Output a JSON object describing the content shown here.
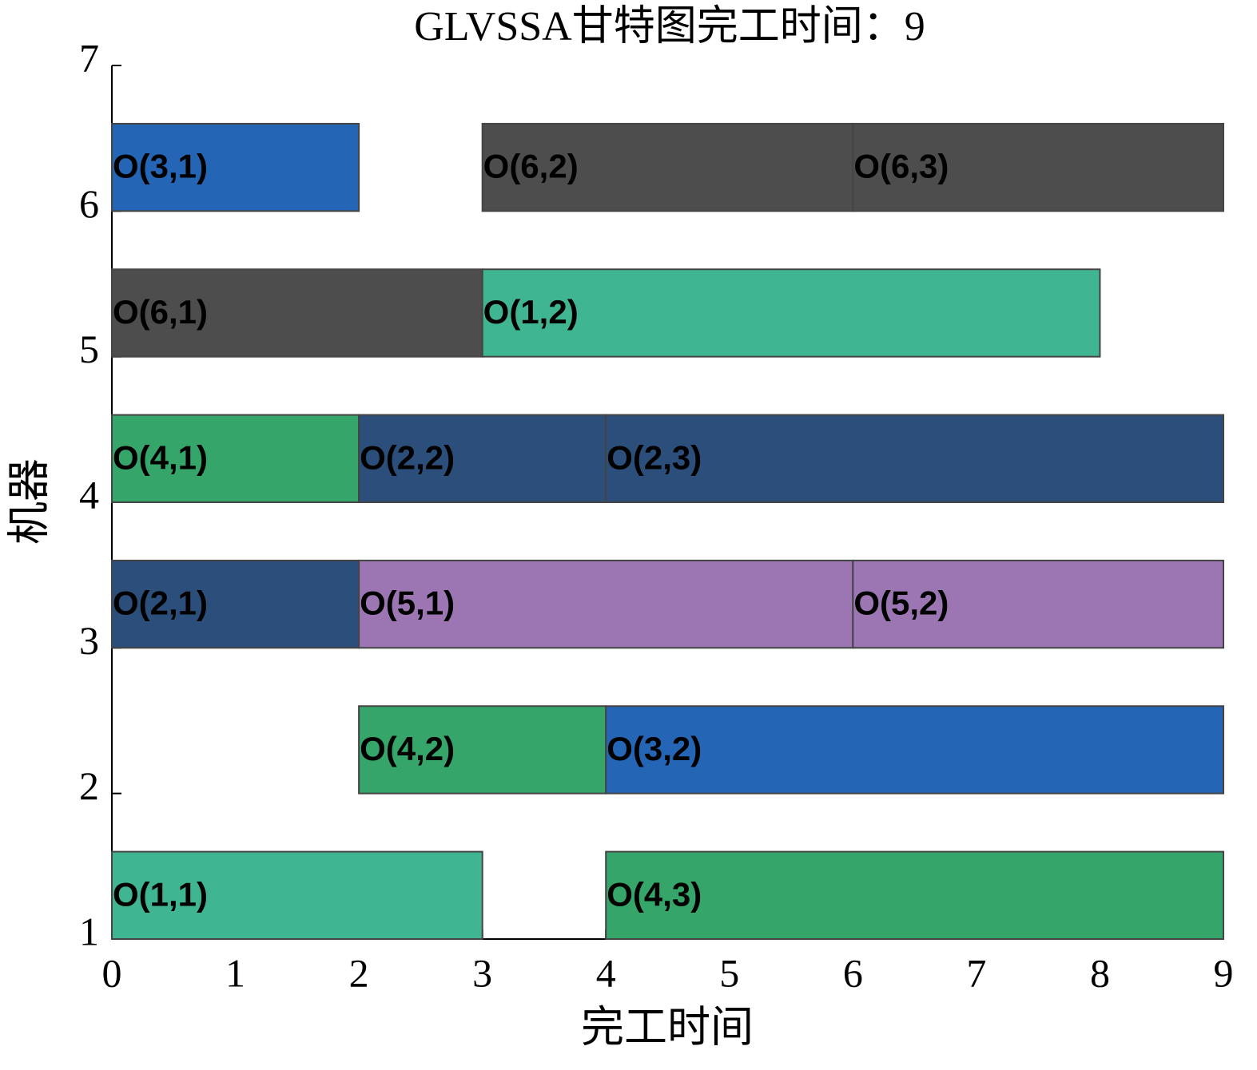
{
  "chart_data": {
    "type": "gantt",
    "title": "GLVSSA甘特图完工时间：9",
    "x_label": "完工时间",
    "y_label": "机器",
    "xlim": [
      0,
      9
    ],
    "xticks": [
      0,
      1,
      2,
      3,
      4,
      5,
      6,
      7,
      8,
      9
    ],
    "ylim": [
      1,
      7
    ],
    "yticks": [
      1,
      2,
      3,
      4,
      5,
      6,
      7
    ],
    "tasks": [
      {
        "name": "O(1,1)",
        "machine": 1,
        "start": 0,
        "end": 3,
        "color": "#40b592"
      },
      {
        "name": "O(4,3)",
        "machine": 1,
        "start": 4,
        "end": 9,
        "color": "#35a56a"
      },
      {
        "name": "O(4,2)",
        "machine": 2,
        "start": 2,
        "end": 4,
        "color": "#35a56a"
      },
      {
        "name": "O(3,2)",
        "machine": 2,
        "start": 4,
        "end": 9,
        "color": "#2466b5"
      },
      {
        "name": "O(2,1)",
        "machine": 3,
        "start": 0,
        "end": 2,
        "color": "#2b4f7a"
      },
      {
        "name": "O(5,1)",
        "machine": 3,
        "start": 2,
        "end": 6,
        "color": "#9b76b2"
      },
      {
        "name": "O(5,2)",
        "machine": 3,
        "start": 6,
        "end": 9,
        "color": "#9b76b2"
      },
      {
        "name": "O(4,1)",
        "machine": 4,
        "start": 0,
        "end": 2,
        "color": "#35a56a"
      },
      {
        "name": "O(2,2)",
        "machine": 4,
        "start": 2,
        "end": 4,
        "color": "#2b4f7a"
      },
      {
        "name": "O(2,3)",
        "machine": 4,
        "start": 4,
        "end": 9,
        "color": "#2b4f7a"
      },
      {
        "name": "O(6,1)",
        "machine": 5,
        "start": 0,
        "end": 3,
        "color": "#4d4d4d"
      },
      {
        "name": "O(1,2)",
        "machine": 5,
        "start": 3,
        "end": 8,
        "color": "#40b592"
      },
      {
        "name": "O(3,1)",
        "machine": 6,
        "start": 0,
        "end": 2,
        "color": "#2466b5"
      },
      {
        "name": "O(6,2)",
        "machine": 6,
        "start": 3,
        "end": 6,
        "color": "#4d4d4d"
      },
      {
        "name": "O(6,3)",
        "machine": 6,
        "start": 6,
        "end": 9,
        "color": "#4d4d4d"
      }
    ]
  }
}
